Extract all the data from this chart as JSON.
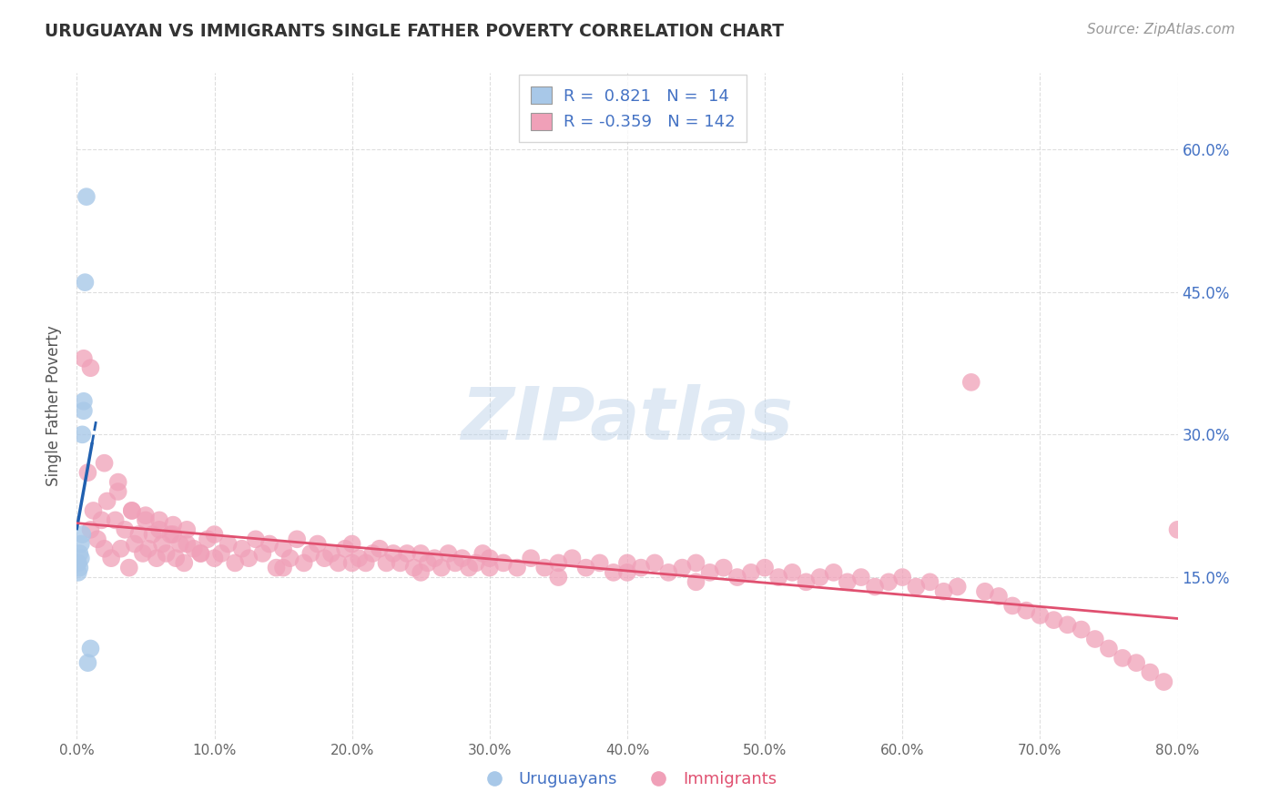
{
  "title": "URUGUAYAN VS IMMIGRANTS SINGLE FATHER POVERTY CORRELATION CHART",
  "source": "Source: ZipAtlas.com",
  "ylabel": "Single Father Poverty",
  "watermark": "ZIPatlas",
  "legend_uruguayan": "Uruguayans",
  "legend_immigrants": "Immigrants",
  "uruguayan_R": 0.821,
  "uruguayan_N": 14,
  "immigrant_R": -0.359,
  "immigrant_N": 142,
  "uruguayan_color": "#a8c8e8",
  "uruguayan_line_color": "#2060b0",
  "immigrant_color": "#f0a0b8",
  "immigrant_line_color": "#e05070",
  "xmin": 0.0,
  "xmax": 0.8,
  "ymin": -0.02,
  "ymax": 0.68,
  "ytick_positions": [
    0.15,
    0.3,
    0.45,
    0.6
  ],
  "ytick_labels": [
    "15.0%",
    "30.0%",
    "45.0%",
    "60.0%"
  ],
  "xtick_positions": [
    0.0,
    0.1,
    0.2,
    0.3,
    0.4,
    0.5,
    0.6,
    0.7,
    0.8
  ],
  "xtick_labels": [
    "0.0%",
    "10.0%",
    "20.0%",
    "30.0%",
    "40.0%",
    "50.0%",
    "60.0%",
    "70.0%",
    "80.0%"
  ],
  "uru_x": [
    0.001,
    0.001,
    0.002,
    0.002,
    0.003,
    0.003,
    0.004,
    0.004,
    0.005,
    0.005,
    0.006,
    0.007,
    0.008,
    0.01
  ],
  "uru_y": [
    0.165,
    0.155,
    0.175,
    0.16,
    0.185,
    0.17,
    0.195,
    0.3,
    0.325,
    0.335,
    0.46,
    0.55,
    0.06,
    0.075
  ],
  "imm_x": [
    0.005,
    0.008,
    0.01,
    0.012,
    0.015,
    0.018,
    0.02,
    0.022,
    0.025,
    0.028,
    0.03,
    0.032,
    0.035,
    0.038,
    0.04,
    0.042,
    0.045,
    0.048,
    0.05,
    0.052,
    0.055,
    0.058,
    0.06,
    0.062,
    0.065,
    0.068,
    0.07,
    0.072,
    0.075,
    0.078,
    0.08,
    0.085,
    0.09,
    0.095,
    0.1,
    0.105,
    0.11,
    0.115,
    0.12,
    0.125,
    0.13,
    0.135,
    0.14,
    0.145,
    0.15,
    0.155,
    0.16,
    0.165,
    0.17,
    0.175,
    0.18,
    0.185,
    0.19,
    0.195,
    0.2,
    0.205,
    0.21,
    0.215,
    0.22,
    0.225,
    0.23,
    0.235,
    0.24,
    0.245,
    0.25,
    0.255,
    0.26,
    0.265,
    0.27,
    0.275,
    0.28,
    0.285,
    0.29,
    0.295,
    0.3,
    0.31,
    0.32,
    0.33,
    0.34,
    0.35,
    0.36,
    0.37,
    0.38,
    0.39,
    0.4,
    0.41,
    0.42,
    0.43,
    0.44,
    0.45,
    0.46,
    0.47,
    0.48,
    0.49,
    0.5,
    0.51,
    0.52,
    0.53,
    0.54,
    0.55,
    0.56,
    0.57,
    0.58,
    0.59,
    0.6,
    0.61,
    0.62,
    0.63,
    0.64,
    0.65,
    0.66,
    0.67,
    0.68,
    0.69,
    0.7,
    0.71,
    0.72,
    0.73,
    0.74,
    0.75,
    0.76,
    0.77,
    0.78,
    0.79,
    0.8,
    0.01,
    0.02,
    0.03,
    0.04,
    0.05,
    0.06,
    0.07,
    0.08,
    0.09,
    0.1,
    0.15,
    0.2,
    0.25,
    0.3,
    0.35,
    0.4,
    0.45
  ],
  "imm_y": [
    0.38,
    0.26,
    0.2,
    0.22,
    0.19,
    0.21,
    0.18,
    0.23,
    0.17,
    0.21,
    0.25,
    0.18,
    0.2,
    0.16,
    0.22,
    0.185,
    0.195,
    0.175,
    0.215,
    0.18,
    0.195,
    0.17,
    0.21,
    0.185,
    0.175,
    0.195,
    0.205,
    0.17,
    0.185,
    0.165,
    0.2,
    0.18,
    0.175,
    0.19,
    0.195,
    0.175,
    0.185,
    0.165,
    0.18,
    0.17,
    0.19,
    0.175,
    0.185,
    0.16,
    0.18,
    0.17,
    0.19,
    0.165,
    0.175,
    0.185,
    0.17,
    0.175,
    0.165,
    0.18,
    0.185,
    0.17,
    0.165,
    0.175,
    0.18,
    0.165,
    0.175,
    0.165,
    0.175,
    0.16,
    0.175,
    0.165,
    0.17,
    0.16,
    0.175,
    0.165,
    0.17,
    0.16,
    0.165,
    0.175,
    0.17,
    0.165,
    0.16,
    0.17,
    0.16,
    0.165,
    0.17,
    0.16,
    0.165,
    0.155,
    0.165,
    0.16,
    0.165,
    0.155,
    0.16,
    0.165,
    0.155,
    0.16,
    0.15,
    0.155,
    0.16,
    0.15,
    0.155,
    0.145,
    0.15,
    0.155,
    0.145,
    0.15,
    0.14,
    0.145,
    0.15,
    0.14,
    0.145,
    0.135,
    0.14,
    0.355,
    0.135,
    0.13,
    0.12,
    0.115,
    0.11,
    0.105,
    0.1,
    0.095,
    0.085,
    0.075,
    0.065,
    0.06,
    0.05,
    0.04,
    0.2,
    0.37,
    0.27,
    0.24,
    0.22,
    0.21,
    0.2,
    0.195,
    0.185,
    0.175,
    0.17,
    0.16,
    0.165,
    0.155,
    0.16,
    0.15,
    0.155,
    0.145
  ]
}
